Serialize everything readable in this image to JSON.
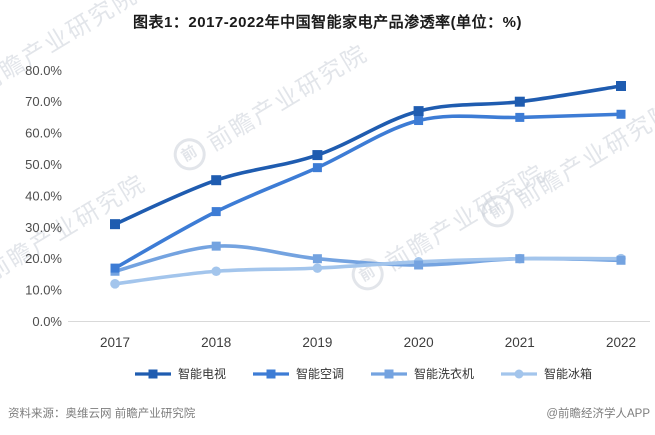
{
  "title": "图表1：2017-2022年中国智能家电产品渗透率(单位：%)",
  "footer": {
    "source": "资料来源：奥维云网 前瞻产业研究院",
    "credit": "@前瞻经济学人APP"
  },
  "watermark": {
    "logo_char": "前",
    "text": "前瞻产业研究院"
  },
  "colors": {
    "axis_line": "#d9d9d9",
    "tick_label": "#4d4d4d",
    "category_label": "#3d3d3d",
    "title_text": "#1a1a1a",
    "footer_text": "#7d7d7d"
  },
  "chart_data": {
    "type": "line",
    "title": "图表1：2017-2022年中国智能家电产品渗透率(单位：%)",
    "unit": "%",
    "categories": [
      "2017",
      "2018",
      "2019",
      "2020",
      "2021",
      "2022"
    ],
    "series": [
      {
        "key": "smart-tv",
        "name": "智能电视",
        "color": "#1f5cb0",
        "marker": "square",
        "values": [
          31,
          45,
          53,
          67,
          70,
          75
        ]
      },
      {
        "key": "smart-ac",
        "name": "智能空调",
        "color": "#3d7cd5",
        "marker": "square",
        "values": [
          17,
          35,
          49,
          64,
          65,
          66
        ]
      },
      {
        "key": "smart-washer",
        "name": "智能洗衣机",
        "color": "#74a3e0",
        "marker": "square",
        "values": [
          16,
          24,
          20,
          18,
          20,
          19.5
        ]
      },
      {
        "key": "smart-fridge",
        "name": "智能冰箱",
        "color": "#a3c5ec",
        "marker": "circle",
        "values": [
          12,
          16,
          17,
          19,
          20,
          20
        ]
      }
    ],
    "xlabel": "",
    "ylabel": "",
    "ylim": [
      0,
      80
    ],
    "y_ticks": [
      "0.0%",
      "10.0%",
      "20.0%",
      "30.0%",
      "40.0%",
      "50.0%",
      "60.0%",
      "70.0%",
      "80.0%"
    ],
    "grid": false,
    "legend_position": "bottom"
  }
}
